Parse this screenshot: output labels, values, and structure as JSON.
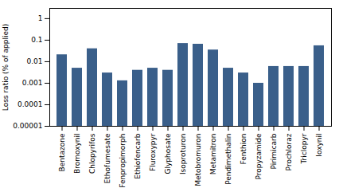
{
  "chart_data": {
    "type": "bar",
    "categories": [
      "Bentazone",
      "Bromoxynil",
      "Chlopyrifos",
      "Ethofumesate",
      "Fenpropimorph",
      "Ethiofencarb",
      "Fluroxypyr",
      "Glyphosate",
      "Isoproturon",
      "Metobromuron",
      "Metamitron",
      "Pendimethalin",
      "Fenthion",
      "Propyzamide",
      "Pirimicarb",
      "Prochloraz",
      "Triclopyr",
      "Ioxynil"
    ],
    "values": [
      0.021,
      0.005,
      0.04,
      0.003,
      0.0013,
      0.004,
      0.005,
      0.004,
      0.07,
      0.065,
      0.035,
      0.005,
      0.003,
      0.001,
      0.006,
      0.006,
      0.006,
      0.055
    ],
    "color": "#3a5f8a",
    "ylabel": "Loss ratio (% of applied)",
    "log": "y",
    "ylim": [
      1e-05,
      3
    ],
    "yticks": [
      1e-05,
      0.0001,
      0.001,
      0.01,
      0.1,
      1
    ],
    "grid": false
  }
}
